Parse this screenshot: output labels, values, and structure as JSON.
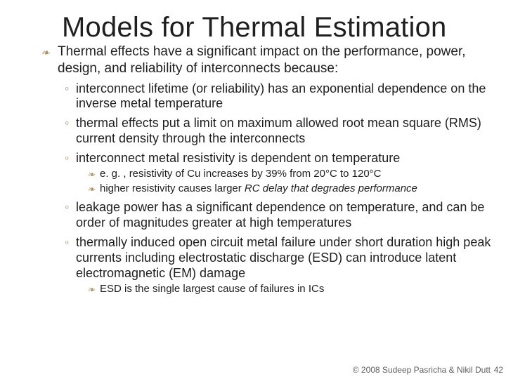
{
  "title": "Models for Thermal Estimation",
  "colors": {
    "bullet": "#b0926a",
    "text": "#1f1f1f",
    "background": "#ffffff",
    "footer": "#5e5e5e"
  },
  "typography": {
    "title_fontsize": 40,
    "l1_fontsize": 19,
    "l2_fontsize": 18,
    "l3_fontsize": 15,
    "font_family": "Arial"
  },
  "bullets_glyph": {
    "l1": "❧",
    "l2": "◦",
    "l3": "❧"
  },
  "l1_text": "Thermal effects have a significant impact on the performance, power, design, and reliability of interconnects because:",
  "l2": {
    "a": "interconnect lifetime (or reliability) has an exponential dependence on the inverse metal temperature",
    "b": "thermal effects put a limit on maximum allowed root mean square (RMS) current density through the interconnects",
    "c": "interconnect metal resistivity is dependent on temperature",
    "d": "leakage power has a significant dependence on temperature, and can be order of magnitudes greater at high temperatures",
    "e": "thermally induced open circuit metal failure under short duration high peak currents including electrostatic discharge (ESD) can introduce latent electromagnetic (EM) damage"
  },
  "l3": {
    "c1": "e. g. , resistivity of Cu increases by 39% from 20°C to 120°C",
    "c2_plain": "higher resistivity causes larger ",
    "c2_ital": "RC delay that degrades performance",
    "e1": "ESD is the single largest cause of failures in ICs"
  },
  "footer": "© 2008 Sudeep Pasricha  & Nikil Dutt",
  "page": "42"
}
